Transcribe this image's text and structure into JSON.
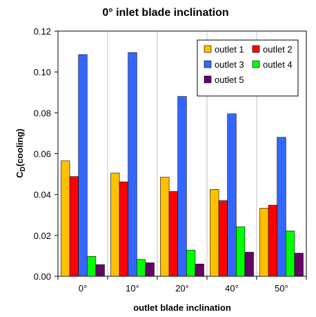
{
  "chart_data": {
    "type": "bar",
    "title": "0° inlet blade inclination",
    "xlabel": "outlet blade inclination",
    "ylabel_main": "C",
    "ylabel_sub": "D",
    "ylabel_suffix": "(cooling)",
    "categories": [
      "0°",
      "10°",
      "20°",
      "40°",
      "50°"
    ],
    "ylim": [
      0,
      0.12
    ],
    "yticks": [
      "0.00",
      "0.02",
      "0.04",
      "0.06",
      "0.08",
      "0.10",
      "0.12"
    ],
    "ytick_values": [
      0,
      0.02,
      0.04,
      0.06,
      0.08,
      0.1,
      0.12
    ],
    "grid": "vertical",
    "legend_position": "top-right",
    "series": [
      {
        "name": "outlet 1",
        "color": "#FFC000",
        "values": [
          0.0565,
          0.0505,
          0.0485,
          0.0425,
          0.0333
        ]
      },
      {
        "name": "outlet 2",
        "color": "#FF0000",
        "values": [
          0.0488,
          0.0462,
          0.0415,
          0.037,
          0.0348
        ]
      },
      {
        "name": "outlet 3",
        "color": "#3366FF",
        "values": [
          0.1085,
          0.1095,
          0.088,
          0.0795,
          0.068
        ]
      },
      {
        "name": "outlet 4",
        "color": "#00FF00",
        "values": [
          0.0097,
          0.0082,
          0.0128,
          0.0242,
          0.0222
        ]
      },
      {
        "name": "outlet 5",
        "color": "#660066",
        "values": [
          0.0057,
          0.0066,
          0.006,
          0.0118,
          0.0113
        ]
      }
    ]
  }
}
